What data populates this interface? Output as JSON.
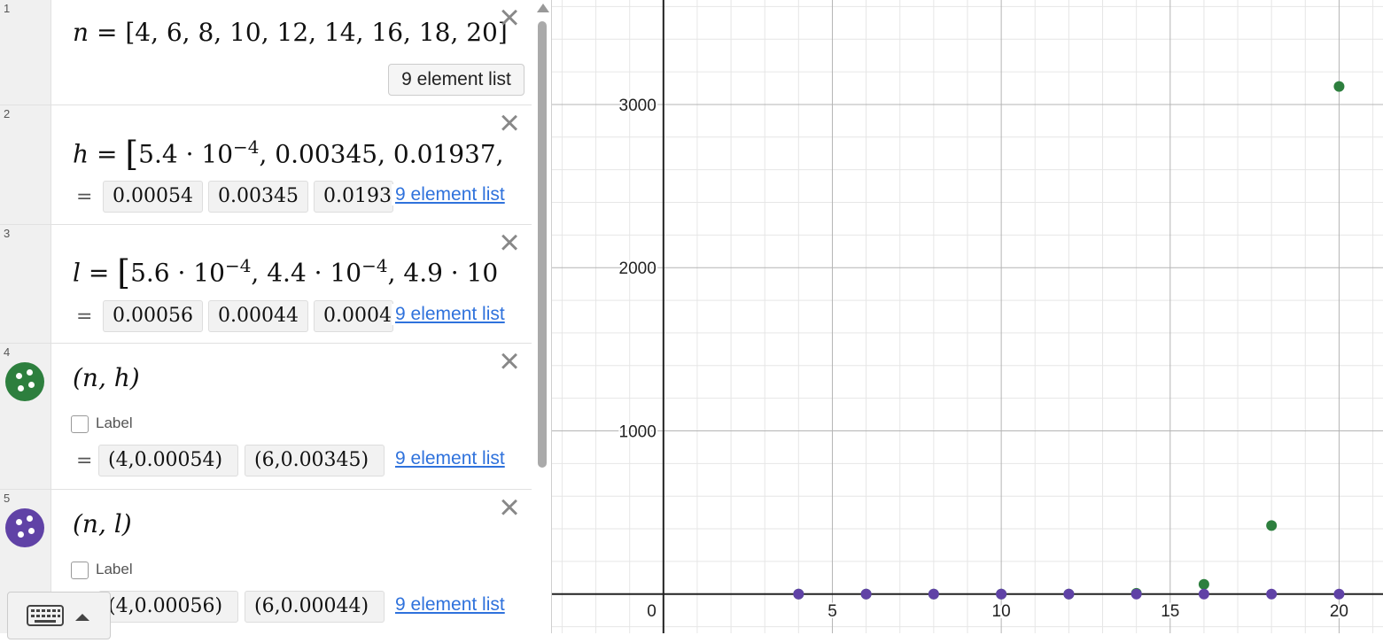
{
  "expressions": [
    {
      "index": "1",
      "var": "n",
      "eq": "=",
      "body": "[4, 6, 8, 10, 12, 14, 16, 18, 20]",
      "badge": "9 element list"
    },
    {
      "index": "2",
      "var": "h",
      "eq": "=",
      "body_pre": "5.4 · 10",
      "exp": "−4",
      "body_post": ", 0.00345, 0.01937,",
      "results": [
        "0.00054",
        "0.00345",
        "0.0193"
      ],
      "link": "9 element list"
    },
    {
      "index": "3",
      "var": "l",
      "eq": "=",
      "body_pre": "5.6 · 10",
      "exp": "−4",
      "body_mid": ", 4.4 · 10",
      "exp2": "−4",
      "body_post": ", 4.9 · 10",
      "results": [
        "0.00056",
        "0.00044",
        "0.0004"
      ],
      "link": "9 element list"
    },
    {
      "index": "4",
      "expr": "(n, h)",
      "color": "#2d7f3e",
      "label": "Label",
      "results": [
        "(4,0.00054)",
        "(6,0.00345)"
      ],
      "link": "9 element list"
    },
    {
      "index": "5",
      "expr": "(n, l)",
      "color": "#6042a6",
      "label": "Label",
      "results": [
        "(4,0.00056)",
        "(6,0.00044)"
      ],
      "link": "9 element list"
    }
  ],
  "icons": {
    "close": "close-icon",
    "keyboard": "keyboard-icon",
    "scroll_up": "scroll-up-icon"
  },
  "chart_data": {
    "type": "scatter",
    "x_ticks": [
      "5",
      "10",
      "15",
      "20"
    ],
    "y_ticks": [
      "1000",
      "2000",
      "3000"
    ],
    "origin_label": "0",
    "xlim": [
      -3.3,
      21.3
    ],
    "ylim": [
      -240,
      3640
    ],
    "grid": true,
    "series": [
      {
        "color": "#2d7f3e",
        "x": [
          4,
          6,
          8,
          10,
          12,
          14,
          16,
          18,
          20
        ],
        "y": [
          0,
          0,
          0,
          0,
          0,
          5,
          60,
          420,
          3110
        ]
      },
      {
        "color": "#6042a6",
        "x": [
          4,
          6,
          8,
          10,
          12,
          14,
          16,
          18,
          20
        ],
        "y": [
          0,
          0,
          0,
          0,
          0,
          0,
          0,
          0,
          0
        ]
      }
    ]
  }
}
